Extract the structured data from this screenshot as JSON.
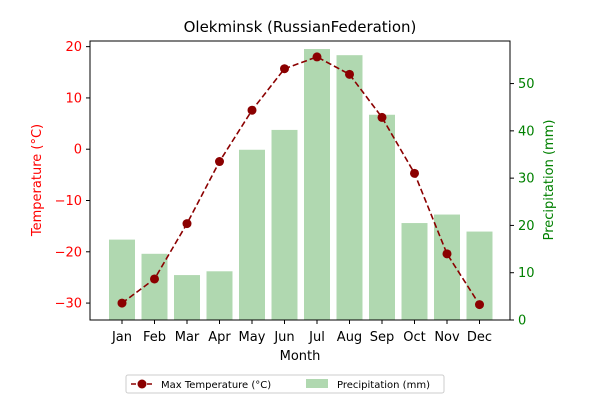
{
  "chart_data": {
    "type": "bar+line",
    "title": "Olekminsk (RussianFederation)",
    "xlabel": "Month",
    "ylabel_left": "Temperature (°C)",
    "ylabel_right": "Precipitation (mm)",
    "categories": [
      "Jan",
      "Feb",
      "Mar",
      "Apr",
      "May",
      "Jun",
      "Jul",
      "Aug",
      "Sep",
      "Oct",
      "Nov",
      "Dec"
    ],
    "series": [
      {
        "name": "Max Temperature (°C)",
        "type": "line",
        "axis": "left",
        "color": "#8b0000",
        "values": [
          -30.0,
          -25.3,
          -14.5,
          -2.4,
          7.6,
          15.7,
          18.0,
          14.6,
          6.2,
          -4.7,
          -20.4,
          -30.3
        ]
      },
      {
        "name": "Precipitation (mm)",
        "type": "bar",
        "axis": "right",
        "color": "#b0d8b0",
        "values": [
          17.0,
          14.0,
          9.5,
          10.3,
          36.0,
          40.2,
          57.3,
          56.0,
          43.4,
          20.5,
          22.3,
          18.7
        ]
      }
    ],
    "ylim_left": [
      -33.3,
      21.1
    ],
    "ylim_right": [
      0,
      59.0
    ],
    "yticks_left": [
      "20",
      "10",
      "0",
      "−10",
      "−20",
      "−30"
    ],
    "yticks_right": [
      "50",
      "40",
      "30",
      "20",
      "10",
      "0"
    ],
    "left_axis_color": "#ff0000",
    "right_axis_color": "#008000",
    "legend": {
      "placement": "bottom-center",
      "entries": [
        "Max Temperature (°C)",
        "Precipitation (mm)"
      ]
    },
    "grid": false
  }
}
